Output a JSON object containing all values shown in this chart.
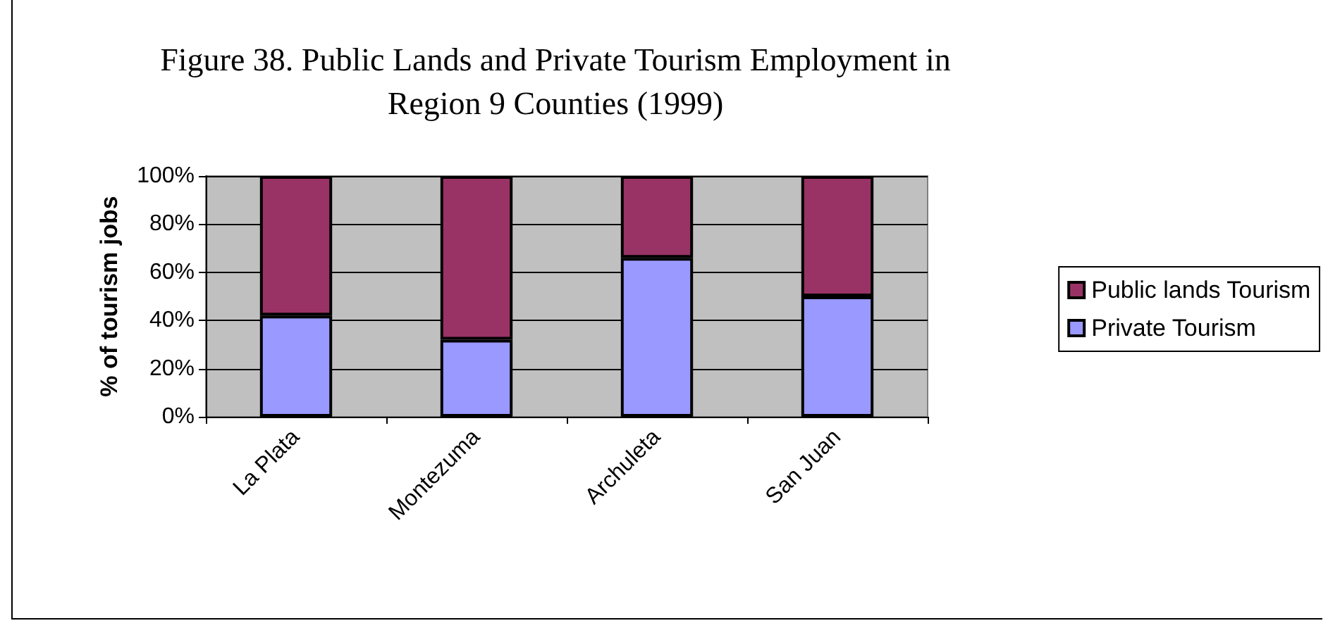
{
  "chart_data": {
    "type": "bar",
    "title": "Figure 38. Public Lands and Private Tourism Employment in\nRegion 9 Counties (1999)",
    "ylabel": "% of tourism jobs",
    "categories": [
      "La Plata",
      "Montezuma",
      "Archuleta",
      "San Juan"
    ],
    "series": [
      {
        "name": "Private Tourism",
        "color": "#9999ff",
        "values": [
          42,
          32,
          66,
          50
        ]
      },
      {
        "name": "Public lands Tourism",
        "color": "#993366",
        "values": [
          58,
          68,
          34,
          50
        ]
      }
    ],
    "stacked": true,
    "ylim": [
      0,
      100
    ],
    "yticks": [
      {
        "value": 0,
        "label": "0%"
      },
      {
        "value": 20,
        "label": "20%"
      },
      {
        "value": 40,
        "label": "40%"
      },
      {
        "value": 60,
        "label": "60%"
      },
      {
        "value": 80,
        "label": "80%"
      },
      {
        "value": 100,
        "label": "100%"
      }
    ],
    "grid": "y",
    "legend": "right"
  }
}
